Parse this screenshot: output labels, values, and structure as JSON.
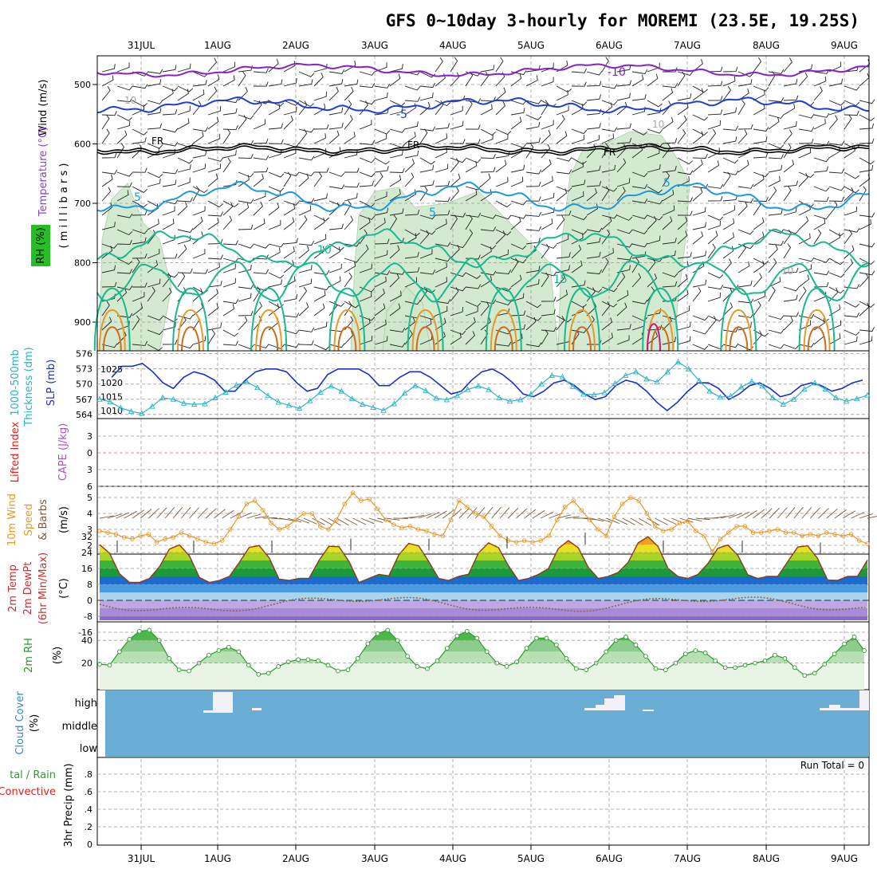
{
  "title": "GFS 0~10day 3-hourly for MOREMI (23.5E, 19.25S)",
  "dates": [
    "31JUL",
    "1AUG",
    "2AUG",
    "3AUG",
    "4AUG",
    "5AUG",
    "6AUG",
    "7AUG",
    "8AUG",
    "9AUG"
  ],
  "colors": {
    "purple": "#8a1fc8",
    "blue": "#1e3fd0",
    "skyblue": "#1a9ae0",
    "teal": "#18b890",
    "orange": "#e89a28",
    "dkorange": "#d2691e",
    "magenta": "#c8148c",
    "rh_fill": "#cfe8cc",
    "thickness": "#2ab4c8",
    "slp": "#1a30c8",
    "wind10": "#e89a28",
    "barb10": "#7a5c3a",
    "cloud": "#6aaed6",
    "rh2m_line": "#2a9a2a",
    "precip_total": "#2aa02a",
    "precip_conv": "#e02020"
  },
  "labels": {
    "upper_wind": "Wind (m/s)",
    "upper_temp": "Temperature (°C)",
    "upper_rh": "RH (%)",
    "upper_p": "( m i l l i b a r s )",
    "thk1": "1000-500mb",
    "thk2": "Thickness (dm)",
    "slp": "SLP (mb)",
    "li": "Lifted Index",
    "cape": "CAPE (J/kg)",
    "wind10a": "10m Wind",
    "wind10b": "Speed",
    "wind10c": "& Barbs",
    "wind10u": "(m/s)",
    "temp1": "2m Temp",
    "temp2": "2m DewPt",
    "temp3": "(6hr Min/Max)",
    "temp_u": "(°C)",
    "rh2m": "2m RH",
    "rh2m_u": "(%)",
    "cloud": "Cloud Cover",
    "cloud_u": "(%)",
    "precip1": "tal / Rain",
    "precip2": "Convective",
    "precip3": "3hr Precip (mm)",
    "run_total": "Run Total = 0",
    "cloud_high": "high",
    "cloud_middle": "middle",
    "cloud_low": "low"
  },
  "contour_labels": {
    "m10": "-10",
    "m5": "-5",
    "fr": "FR",
    "p5": "5",
    "p10": "10",
    "p15": "15",
    "g10": "10"
  },
  "chart_data": [
    {
      "type": "line",
      "name": "upper-air",
      "ylabel": "Wind (m/s) Temperature (°C) RH (%) (millibars)",
      "y_ticks": [
        500,
        600,
        700,
        800,
        900
      ],
      "ylim": [
        1000,
        450
      ],
      "contour_levels": [
        "-10",
        "-5",
        "FR",
        "5",
        "10",
        "15"
      ]
    },
    {
      "type": "line",
      "name": "thickness-slp",
      "y_left_ticks": [
        576,
        573,
        570,
        567,
        564
      ],
      "y_right_ticks": [
        1025,
        1020,
        1015,
        1010
      ],
      "slp_series": [
        1022,
        1026,
        1026,
        1027,
        1024,
        1020,
        1018,
        1022,
        1024,
        1023,
        1021,
        1017,
        1017,
        1021,
        1024,
        1025,
        1025,
        1024,
        1020,
        1017,
        1018,
        1023,
        1025,
        1025,
        1025,
        1023,
        1019,
        1019,
        1022,
        1024,
        1024,
        1022,
        1019,
        1016,
        1017,
        1021,
        1024,
        1025,
        1023,
        1020,
        1016,
        1015,
        1017,
        1020,
        1021,
        1019,
        1016,
        1014,
        1015,
        1019,
        1021,
        1020,
        1017,
        1013,
        1010,
        1013,
        1017,
        1020,
        1020,
        1018,
        1014,
        1016,
        1019,
        1020,
        1018,
        1015,
        1016,
        1019,
        1020,
        1019,
        1017,
        1018,
        1020,
        1021
      ],
      "thickness_series": [
        567.0,
        566.5,
        565.3,
        564.6,
        564.2,
        565.6,
        567.3,
        567.0,
        566.2,
        566.0,
        566.1,
        567.3,
        568.4,
        569.8,
        570.4,
        569.3,
        567.7,
        566.4,
        565.8,
        565.2,
        566.7,
        568.4,
        569.6,
        568.6,
        567.1,
        566.0,
        565.4,
        564.8,
        566.1,
        568.2,
        569.7,
        568.7,
        567.2,
        566.9,
        567.7,
        568.9,
        569.6,
        568.9,
        567.3,
        566.6,
        566.9,
        568.0,
        570.0,
        571.7,
        571.4,
        569.5,
        568.0,
        567.9,
        568.3,
        570.1,
        571.7,
        572.4,
        571.0,
        570.4,
        572.4,
        574.4,
        573.0,
        570.7,
        568.6,
        567.4,
        567.6,
        569.4,
        570.5,
        569.6,
        567.3,
        566.0,
        567.0,
        569.0,
        570.2,
        569.0,
        567.3,
        566.6,
        567.1,
        567.8
      ]
    },
    {
      "type": "line",
      "name": "lifted-index-cape",
      "y_ticks": [
        -3,
        0,
        3,
        6
      ],
      "ylim": [
        -6,
        6
      ]
    },
    {
      "type": "line",
      "name": "10m-wind",
      "y_ticks": [
        2,
        3,
        4,
        5
      ],
      "ylim": [
        1.5,
        5.6
      ],
      "values": [
        2.9,
        2.8,
        2.7,
        2.5,
        2.4,
        2.6,
        2.7,
        2.2,
        2.4,
        2.5,
        2.8,
        2.6,
        2.4,
        2.2,
        2.1,
        2.3,
        3.0,
        3.8,
        4.6,
        4.8,
        4.2,
        3.4,
        3.0,
        3.2,
        3.6,
        4.0,
        4.0,
        3.2,
        3.0,
        3.6,
        4.6,
        5.3,
        4.8,
        4.9,
        4.3,
        3.6,
        3.3,
        3.1,
        3.2,
        3.0,
        2.9,
        2.7,
        2.6,
        3.6,
        4.8,
        4.4,
        4.0,
        3.8,
        3.2,
        2.6,
        2.3,
        2.2,
        2.3,
        2.2,
        2.3,
        2.6,
        3.6,
        4.4,
        4.8,
        4.2,
        3.6,
        3.0,
        2.6,
        3.8,
        4.6,
        5.0,
        4.8,
        4.0,
        3.2,
        2.9,
        3.0,
        3.4,
        3.5,
        2.9,
        2.6,
        1.6,
        2.4,
        2.8,
        3.2,
        3.2,
        2.8,
        2.8,
        2.9,
        3.0,
        2.8,
        2.8,
        2.6,
        2.7,
        2.6,
        2.8,
        2.7,
        2.6,
        2.7,
        2.3,
        2.1
      ]
    },
    {
      "type": "area",
      "name": "2m-temp-dewpt",
      "y_ticks": [
        32,
        24,
        16,
        8,
        0,
        -8,
        -16
      ],
      "ylim": [
        -17,
        33
      ],
      "temp_min_max": [
        [
          9,
          28
        ],
        [
          10,
          28
        ],
        [
          9,
          28
        ],
        [
          11,
          29
        ],
        [
          10,
          29
        ],
        [
          11,
          30
        ],
        [
          12,
          32
        ],
        [
          11,
          28
        ],
        [
          10,
          28
        ],
        [
          10,
          27
        ]
      ],
      "dewpoint_range": [
        -6,
        2
      ]
    },
    {
      "type": "area",
      "name": "2m-rh",
      "y_ticks": [
        20,
        40
      ],
      "ylim": [
        0,
        55
      ],
      "values": [
        19,
        18,
        30,
        41,
        48,
        49,
        40,
        24,
        14,
        13,
        20,
        27,
        31,
        34,
        30,
        18,
        10,
        11,
        17,
        21,
        23,
        23,
        22,
        18,
        13,
        14,
        24,
        37,
        46,
        49,
        40,
        26,
        17,
        15,
        22,
        33,
        44,
        48,
        42,
        30,
        20,
        17,
        21,
        33,
        42,
        42,
        36,
        24,
        15,
        14,
        20,
        30,
        40,
        43,
        36,
        26,
        15,
        14,
        20,
        28,
        31,
        29,
        22,
        16,
        16,
        18,
        20,
        22,
        27,
        24,
        16,
        9,
        11,
        19,
        28,
        37,
        43,
        31
      ]
    },
    {
      "type": "bar",
      "name": "cloud-cover",
      "categories": [
        "high",
        "middle",
        "low"
      ]
    },
    {
      "type": "bar",
      "name": "3hr-precip",
      "y_ticks": [
        0,
        0.2,
        0.4,
        0.6,
        0.8
      ],
      "ylim": [
        0,
        1
      ],
      "values": [],
      "annotation": "Run Total = 0"
    }
  ]
}
